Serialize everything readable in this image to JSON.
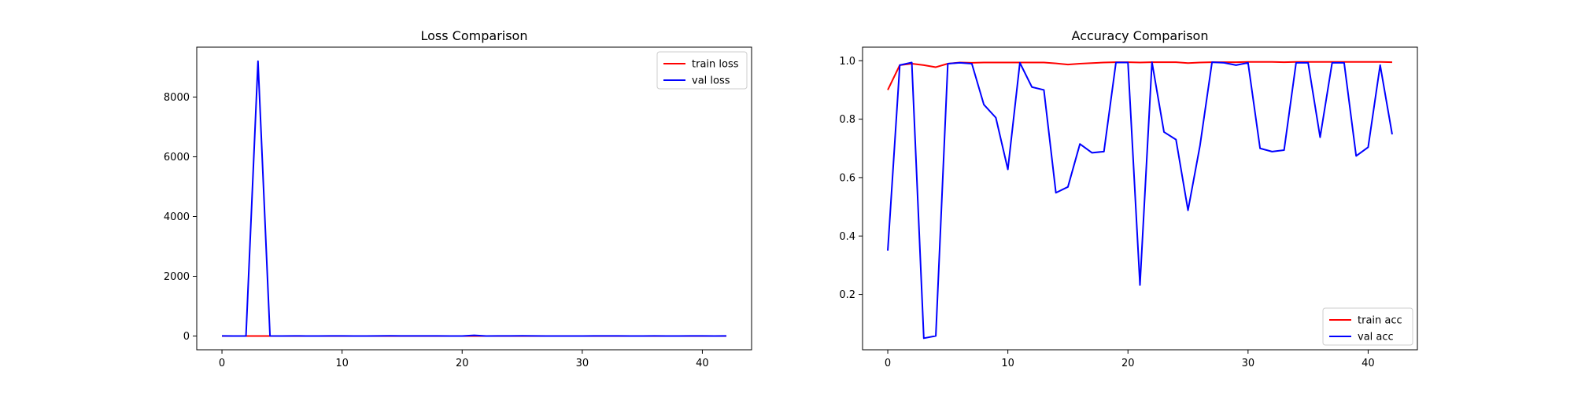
{
  "chart_data": [
    {
      "type": "line",
      "title": "Loss Comparison",
      "xlabel": "",
      "ylabel": "",
      "xlim": [
        -2.1,
        44.1
      ],
      "ylim": [
        -460,
        9670
      ],
      "xticks": [
        0,
        10,
        20,
        30,
        40
      ],
      "xtick_labels": [
        "0",
        "10",
        "20",
        "30",
        "40"
      ],
      "yticks": [
        0,
        2000,
        4000,
        6000,
        8000
      ],
      "ytick_labels": [
        "0",
        "2000",
        "4000",
        "6000",
        "8000"
      ],
      "grid": false,
      "legend_position": "top-right",
      "x": [
        0,
        1,
        2,
        3,
        4,
        5,
        6,
        7,
        8,
        9,
        10,
        11,
        12,
        13,
        14,
        15,
        16,
        17,
        18,
        19,
        20,
        21,
        22,
        23,
        24,
        25,
        26,
        27,
        28,
        29,
        30,
        31,
        32,
        33,
        34,
        35,
        36,
        37,
        38,
        39,
        40,
        41,
        42
      ],
      "series": [
        {
          "name": "train loss",
          "color": "#ff0000",
          "values": [
            0.25,
            0.04,
            0.03,
            0.04,
            0.05,
            0.03,
            0.02,
            0.02,
            0.02,
            0.02,
            0.02,
            0.02,
            0.02,
            0.02,
            0.03,
            0.03,
            0.02,
            0.02,
            0.02,
            0.02,
            0.02,
            0.02,
            0.02,
            0.02,
            0.02,
            0.02,
            0.02,
            0.02,
            0.02,
            0.02,
            0.02,
            0.02,
            0.02,
            0.02,
            0.02,
            0.02,
            0.02,
            0.02,
            0.02,
            0.02,
            0.02,
            0.02,
            0.02
          ]
        },
        {
          "name": "val loss",
          "color": "#0000ff",
          "values": [
            5,
            2,
            2,
            9200,
            5,
            2,
            3,
            2,
            2,
            3,
            5,
            2,
            2,
            3,
            6,
            5,
            3,
            4,
            4,
            2,
            2,
            25,
            2,
            4,
            3,
            7,
            4,
            2,
            2,
            2,
            2,
            3,
            3,
            3,
            2,
            2,
            3,
            2,
            2,
            4,
            3,
            2,
            4
          ]
        }
      ]
    },
    {
      "type": "line",
      "title": "Accuracy Comparison",
      "xlabel": "",
      "ylabel": "",
      "xlim": [
        -2.1,
        44.1
      ],
      "ylim": [
        0.0105,
        1.0465
      ],
      "xticks": [
        0,
        10,
        20,
        30,
        40
      ],
      "xtick_labels": [
        "0",
        "10",
        "20",
        "30",
        "40"
      ],
      "yticks": [
        0.2,
        0.4,
        0.6,
        0.8,
        1.0
      ],
      "ytick_labels": [
        "0.2",
        "0.4",
        "0.6",
        "0.8",
        "1.0"
      ],
      "grid": false,
      "legend_position": "bottom-right",
      "x": [
        0,
        1,
        2,
        3,
        4,
        5,
        6,
        7,
        8,
        9,
        10,
        11,
        12,
        13,
        14,
        15,
        16,
        17,
        18,
        19,
        20,
        21,
        22,
        23,
        24,
        25,
        26,
        27,
        28,
        29,
        30,
        31,
        32,
        33,
        34,
        35,
        36,
        37,
        38,
        39,
        40,
        41,
        42
      ],
      "series": [
        {
          "name": "train acc",
          "color": "#ff0000",
          "values": [
            0.9,
            0.985,
            0.99,
            0.985,
            0.978,
            0.99,
            0.994,
            0.993,
            0.994,
            0.994,
            0.994,
            0.994,
            0.994,
            0.994,
            0.991,
            0.987,
            0.99,
            0.992,
            0.994,
            0.995,
            0.995,
            0.994,
            0.995,
            0.995,
            0.995,
            0.992,
            0.994,
            0.995,
            0.995,
            0.995,
            0.996,
            0.996,
            0.996,
            0.995,
            0.996,
            0.996,
            0.996,
            0.996,
            0.996,
            0.996,
            0.996,
            0.996,
            0.995
          ]
        },
        {
          "name": "val acc",
          "color": "#0000ff",
          "values": [
            0.35,
            0.985,
            0.994,
            0.05,
            0.058,
            0.99,
            0.993,
            0.99,
            0.85,
            0.805,
            0.628,
            0.993,
            0.91,
            0.9,
            0.548,
            0.568,
            0.715,
            0.685,
            0.689,
            0.994,
            0.994,
            0.232,
            0.995,
            0.756,
            0.73,
            0.488,
            0.71,
            0.995,
            0.993,
            0.985,
            0.993,
            0.7,
            0.689,
            0.694,
            0.993,
            0.993,
            0.738,
            0.993,
            0.993,
            0.674,
            0.704,
            0.985,
            0.748
          ]
        }
      ]
    }
  ]
}
